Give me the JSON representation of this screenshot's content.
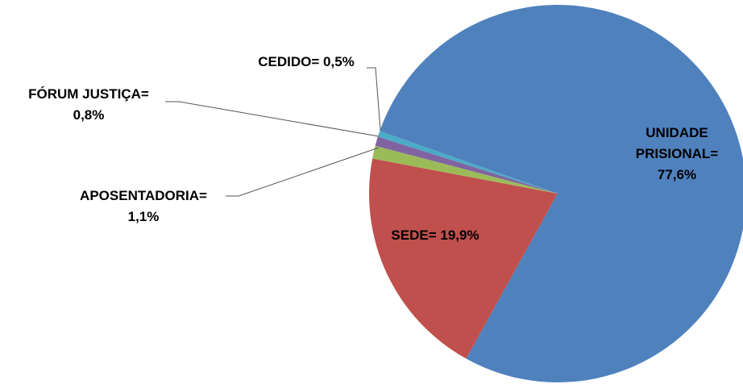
{
  "chart_data": {
    "type": "pie",
    "categories": [
      "SEDE=",
      "APOSENTADORIA=",
      "FÓRUM JUSTIÇA=",
      "CEDIDO=",
      "UNIDADE PRISIONAL="
    ],
    "values": [
      19.9,
      1.1,
      0.8,
      0.5,
      77.6
    ],
    "value_labels": [
      "19,9%",
      "1,1%",
      "0,8%",
      "0,5%",
      "77,6%"
    ],
    "colors": [
      "#c0504d",
      "#9bbb59",
      "#8064a2",
      "#4bacc6",
      "#4f81bd"
    ]
  }
}
